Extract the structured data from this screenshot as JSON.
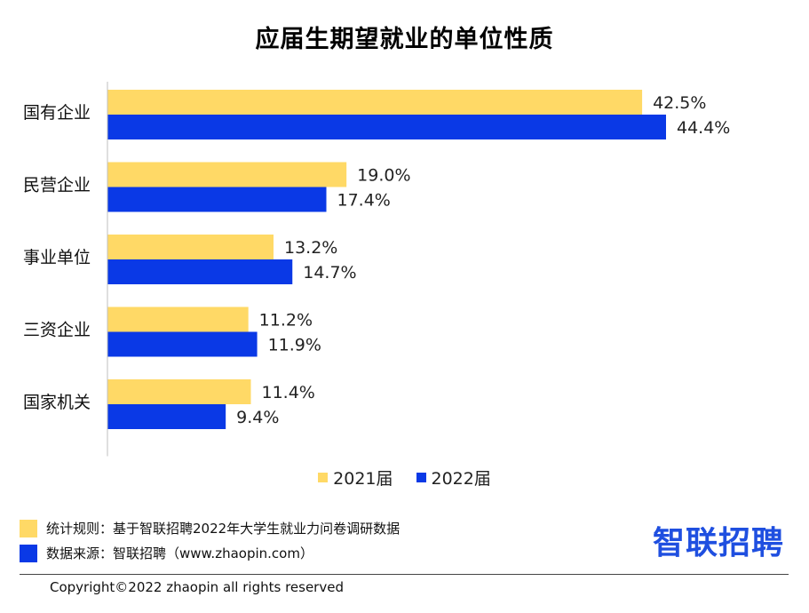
{
  "title": "应届生期望就业的单位性质",
  "colors": {
    "y2021": "#FFD966",
    "y2022": "#0A39E6",
    "logo": "#1F4FE0"
  },
  "chart_data": {
    "type": "bar",
    "orientation": "horizontal",
    "title": "应届生期望就业的单位性质",
    "unit": "%",
    "categories": [
      "国有企业",
      "民营企业",
      "事业单位",
      "三资企业",
      "国家机关"
    ],
    "series": [
      {
        "name": "2021届",
        "values": [
          42.5,
          19.0,
          13.2,
          11.2,
          11.4
        ],
        "labels": [
          "42.5%",
          "19.0%",
          "13.2%",
          "11.2%",
          "11.4%"
        ]
      },
      {
        "name": "2022届",
        "values": [
          44.4,
          17.4,
          14.7,
          11.9,
          9.4
        ],
        "labels": [
          "44.4%",
          "17.4%",
          "14.7%",
          "11.9%",
          "9.4%"
        ]
      }
    ],
    "xlim": [
      0,
      48
    ],
    "grid": false,
    "legend": "bottom-center"
  },
  "footnotes": {
    "rule": "统计规则：基于智联招聘2022年大学生就业力问卷调研数据",
    "source": "数据来源：智联招聘（www.zhaopin.com）"
  },
  "logo": "智联招聘",
  "copyright": "Copyright©2022 zhaopin all rights reserved"
}
